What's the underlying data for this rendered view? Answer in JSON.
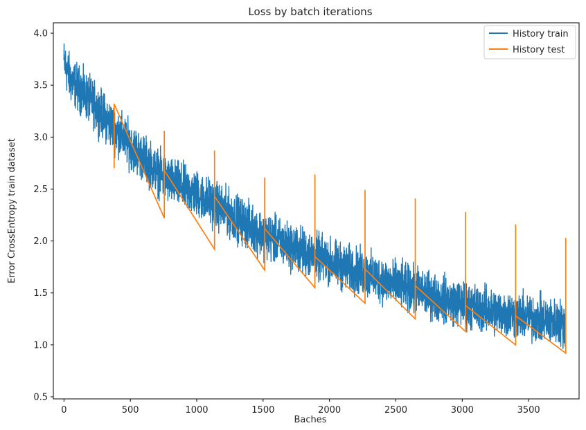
{
  "chart_data": {
    "type": "line",
    "title": "Loss by batch iterations",
    "xlabel": "Baches",
    "ylabel": "Error CrossEntropy train dataset",
    "xlim": [
      -80,
      3880
    ],
    "ylim": [
      0.48,
      4.1
    ],
    "xticks": [
      0,
      500,
      1000,
      1500,
      2000,
      2500,
      3000,
      3500
    ],
    "xtick_labels": [
      "0",
      "500",
      "1000",
      "1500",
      "2000",
      "2500",
      "3000",
      "3500"
    ],
    "yticks": [
      0.5,
      1.0,
      1.5,
      2.0,
      2.5,
      3.0,
      3.5,
      4.0
    ],
    "ytick_labels": [
      "0.5",
      "1.0",
      "1.5",
      "2.0",
      "2.5",
      "3.0",
      "3.5",
      "4.0"
    ],
    "grid": false,
    "legend_position": "top-right",
    "series": [
      {
        "name": "History train",
        "color": "#1f77b4",
        "trend_x": [
          0,
          50,
          200,
          380,
          500,
          760,
          1000,
          1140,
          1300,
          1520,
          1700,
          1900,
          2100,
          2280,
          2500,
          2660,
          2800,
          3040,
          3200,
          3420,
          3600,
          3780
        ],
        "trend_y": [
          3.72,
          3.55,
          3.35,
          3.08,
          2.92,
          2.6,
          2.45,
          2.35,
          2.22,
          2.05,
          1.95,
          1.85,
          1.75,
          1.68,
          1.58,
          1.52,
          1.46,
          1.38,
          1.33,
          1.28,
          1.24,
          1.2
        ],
        "noise_amplitude": 0.2,
        "n_points": 3780
      },
      {
        "name": "History test",
        "color": "#ff7f0e",
        "x": [
          378,
          378,
          378,
          756,
          756,
          756,
          1134,
          1134,
          1134,
          1512,
          1512,
          1512,
          1890,
          1890,
          1890,
          2268,
          2268,
          2268,
          2646,
          2646,
          2646,
          3024,
          3024,
          3024,
          3402,
          3402,
          3402,
          3780,
          3780,
          3780
        ],
        "y": [
          2.7,
          3.32,
          3.32,
          2.22,
          3.06,
          2.68,
          1.92,
          2.87,
          2.43,
          1.72,
          2.61,
          2.12,
          1.55,
          2.64,
          1.85,
          1.4,
          2.49,
          1.73,
          1.25,
          2.41,
          1.57,
          1.13,
          2.28,
          1.38,
          1.0,
          2.16,
          1.28,
          0.92,
          2.03,
          1.2
        ]
      }
    ]
  }
}
